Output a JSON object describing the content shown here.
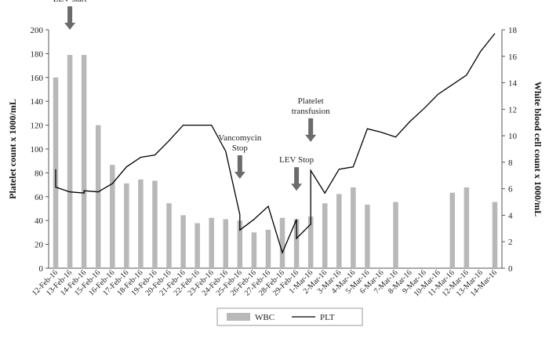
{
  "chart_data": {
    "type": "bar+line",
    "categories": [
      "12-Feb-16",
      "13-Feb-16",
      "14-Feb-16",
      "15-Feb-16",
      "16-Feb-16",
      "17-Feb-16",
      "18-Feb-16",
      "19-Feb-16",
      "20-Feb-16",
      "21-Feb-16",
      "22-Feb-16",
      "23-Feb-16",
      "24-Feb-16",
      "25-Feb-16",
      "26-Feb-16",
      "27-Feb-16",
      "28-Feb-16",
      "29-Feb-16",
      "1-Mar-16",
      "2-Mar-16",
      "3-Mar-16",
      "4-Mar-16",
      "5-Mar-16",
      "6-Mar-16",
      "7-Mar-16",
      "8-Mar-16",
      "9-Mar-16",
      "10-Mar-16",
      "11-Mar-16",
      "12-Mar-16",
      "13-Mar-16",
      "14-Mar-16"
    ],
    "series": [
      {
        "name": "WBC",
        "kind": "bar",
        "axis": "right",
        "color": "#b8b8b8",
        "values": [
          14.4,
          16.1,
          16.1,
          10.8,
          7.8,
          6.4,
          6.7,
          6.6,
          4.9,
          4.0,
          3.4,
          3.8,
          3.7,
          3.6,
          2.7,
          2.9,
          3.8,
          3.7,
          3.9,
          4.9,
          5.6,
          6.1,
          4.8,
          null,
          5.0,
          null,
          null,
          null,
          5.7,
          6.1,
          null,
          5.0
        ]
      },
      {
        "name": "PLT",
        "kind": "line",
        "axis": "left",
        "color": "#000000",
        "points": [
          [
            0,
            83
          ],
          [
            0,
            68
          ],
          [
            1,
            64
          ],
          [
            2,
            63
          ],
          [
            2,
            65
          ],
          [
            3,
            64
          ],
          [
            4,
            71
          ],
          [
            5,
            85
          ],
          [
            6,
            93
          ],
          [
            7,
            95
          ],
          [
            8,
            107
          ],
          [
            9,
            120
          ],
          [
            10,
            120
          ],
          [
            11,
            120
          ],
          [
            12,
            98
          ],
          [
            13,
            45
          ],
          [
            13,
            32
          ],
          [
            14,
            41
          ],
          [
            15,
            52
          ],
          [
            16,
            13
          ],
          [
            17,
            41
          ],
          [
            17,
            25
          ],
          [
            18,
            37
          ],
          [
            18,
            82
          ],
          [
            19,
            63
          ],
          [
            20,
            83
          ],
          [
            21,
            85
          ],
          [
            22,
            117
          ],
          [
            23,
            114
          ],
          [
            24,
            110
          ],
          [
            25,
            123
          ],
          [
            26,
            134
          ],
          [
            27,
            146
          ],
          [
            28,
            154
          ],
          [
            29,
            162
          ],
          [
            30,
            182
          ],
          [
            31,
            197
          ]
        ]
      }
    ],
    "y_left": {
      "label": "Platelet count x 1000/mL",
      "min": 0,
      "max": 200,
      "step": 20
    },
    "y_right": {
      "label": "White blood cell count x 1000/mL",
      "min": 0,
      "max": 18,
      "step": 2
    },
    "annotations": [
      {
        "text": "LEV start",
        "x": 1,
        "y": 200
      },
      {
        "text": "Vancomycin Stop",
        "x": 13,
        "y": 75
      },
      {
        "text": "LEV Stop",
        "x": 17,
        "y": 65
      },
      {
        "text": "Platelet transfusion",
        "x": 18,
        "y": 106
      }
    ],
    "legend": {
      "position": "bottom",
      "items": [
        "WBC",
        "PLT"
      ]
    },
    "grid": false
  }
}
